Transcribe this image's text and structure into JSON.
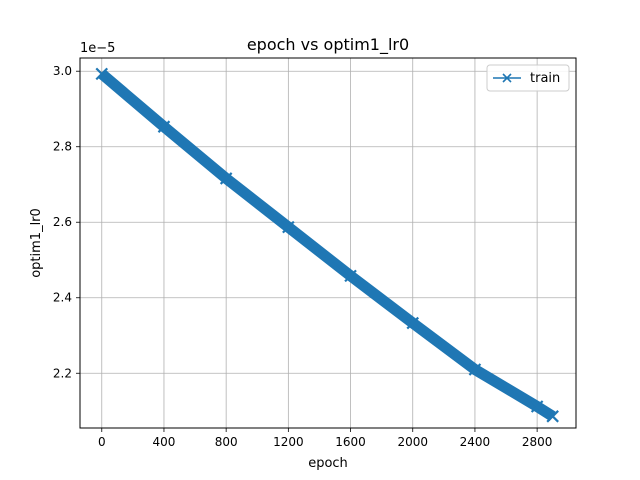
{
  "chart_data": {
    "type": "line",
    "title": "epoch vs optim1_lr0",
    "xlabel": "epoch",
    "ylabel": "optim1_lr0",
    "y_offset_label": "1e−5",
    "xlim": [
      -140,
      3050
    ],
    "ylim": [
      2.055,
      3.035
    ],
    "xticks": [
      0,
      400,
      800,
      1200,
      1600,
      2000,
      2400,
      2800
    ],
    "yticks": [
      2.2,
      2.4,
      2.6,
      2.8,
      3.0
    ],
    "ytick_labels": [
      "2.2",
      "2.4",
      "2.6",
      "2.8",
      "3.0"
    ],
    "grid": true,
    "legend_position": "top-right",
    "series": [
      {
        "name": "train",
        "color": "#1f77b4",
        "marker": "x",
        "x": [
          0,
          400,
          800,
          1200,
          1600,
          2000,
          2400,
          2800,
          2900
        ],
        "y": [
          2.993,
          2.853,
          2.716,
          2.587,
          2.458,
          2.333,
          2.21,
          2.112,
          2.086
        ]
      }
    ]
  }
}
